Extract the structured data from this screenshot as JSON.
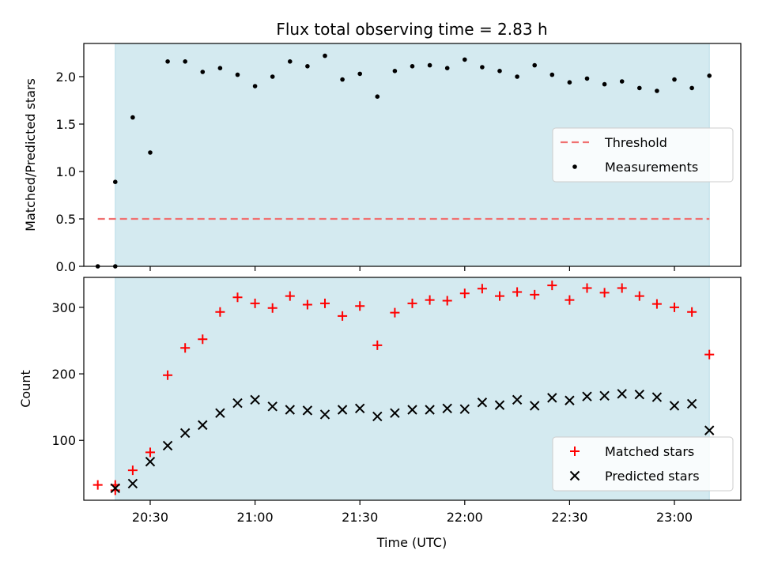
{
  "figure": {
    "title": "Flux total observing time = 2.83 h",
    "xlabel": "Time (UTC)",
    "observing_band_color": "#d4eaf0",
    "observing_band_edge_color": "#b9dde6"
  },
  "chart_data": [
    {
      "type": "scatter",
      "panel": "top",
      "title": "Flux total observing time = 2.83 h",
      "xlabel": "",
      "ylabel": "Matched/Predicted stars",
      "xlim": [
        "20:11",
        "23:19"
      ],
      "ylim": [
        0,
        2.35
      ],
      "x_ticks": [],
      "y_ticks": [
        0.0,
        0.5,
        1.0,
        1.5,
        2.0
      ],
      "y_tick_labels": [
        "0.0",
        "0.5",
        "1.0",
        "1.5",
        "2.0"
      ],
      "observing_window": [
        "20:20",
        "23:10"
      ],
      "legend_position": "center-right",
      "series": [
        {
          "name": "Threshold",
          "kind": "dashed-line",
          "color": "#f07070",
          "x": [
            "20:15",
            "23:10"
          ],
          "y": [
            0.5,
            0.5
          ]
        },
        {
          "name": "Measurements",
          "kind": "dot",
          "color": "#000000",
          "x": [
            "20:15",
            "20:20",
            "20:20",
            "20:25",
            "20:30",
            "20:35",
            "20:40",
            "20:45",
            "20:50",
            "20:55",
            "21:00",
            "21:05",
            "21:10",
            "21:15",
            "21:20",
            "21:25",
            "21:30",
            "21:35",
            "21:40",
            "21:45",
            "21:50",
            "21:55",
            "22:00",
            "22:05",
            "22:10",
            "22:15",
            "22:20",
            "22:25",
            "22:30",
            "22:35",
            "22:40",
            "22:45",
            "22:50",
            "22:55",
            "23:00",
            "23:05",
            "23:10"
          ],
          "y": [
            0.0,
            0.0,
            0.89,
            1.57,
            1.2,
            2.16,
            2.16,
            2.05,
            2.09,
            2.02,
            1.9,
            2.0,
            2.16,
            2.11,
            2.22,
            1.97,
            2.03,
            1.79,
            2.06,
            2.11,
            2.12,
            2.09,
            2.18,
            2.1,
            2.06,
            2.0,
            2.12,
            2.02,
            1.94,
            1.98,
            1.92,
            1.95,
            1.88,
            1.85,
            1.97,
            1.88,
            2.01
          ]
        }
      ]
    },
    {
      "type": "scatter",
      "panel": "bottom",
      "xlabel": "Time (UTC)",
      "ylabel": "Count",
      "xlim": [
        "20:11",
        "23:19"
      ],
      "ylim": [
        10,
        345
      ],
      "x_ticks": [
        "20:30",
        "21:00",
        "21:30",
        "22:00",
        "22:30",
        "23:00"
      ],
      "x_tick_labels": [
        "20:30",
        "21:00",
        "21:30",
        "22:00",
        "22:30",
        "23:00"
      ],
      "y_ticks": [
        100,
        200,
        300
      ],
      "y_tick_labels": [
        "100",
        "200",
        "300"
      ],
      "observing_window": [
        "20:20",
        "23:10"
      ],
      "legend_position": "lower-right",
      "series": [
        {
          "name": "Matched stars",
          "kind": "plus",
          "color": "#ff0000",
          "x": [
            "20:15",
            "20:20",
            "20:20",
            "20:25",
            "20:30",
            "20:35",
            "20:40",
            "20:45",
            "20:50",
            "20:55",
            "21:00",
            "21:05",
            "21:10",
            "21:15",
            "21:20",
            "21:25",
            "21:30",
            "21:35",
            "21:40",
            "21:45",
            "21:50",
            "21:55",
            "22:00",
            "22:05",
            "22:10",
            "22:15",
            "22:20",
            "22:25",
            "22:30",
            "22:35",
            "22:40",
            "22:45",
            "22:50",
            "22:55",
            "23:00",
            "23:05",
            "23:10"
          ],
          "y": [
            33,
            33,
            25,
            55,
            82,
            198,
            239,
            252,
            293,
            315,
            306,
            299,
            317,
            304,
            306,
            287,
            302,
            243,
            292,
            306,
            311,
            310,
            321,
            328,
            317,
            323,
            319,
            333,
            311,
            329,
            322,
            329,
            317,
            305,
            300,
            293,
            229
          ]
        },
        {
          "name": "Predicted stars",
          "kind": "cross",
          "color": "#000000",
          "x": [
            "20:20",
            "20:25",
            "20:30",
            "20:35",
            "20:40",
            "20:45",
            "20:50",
            "20:55",
            "21:00",
            "21:05",
            "21:10",
            "21:15",
            "21:20",
            "21:25",
            "21:30",
            "21:35",
            "21:40",
            "21:45",
            "21:50",
            "21:55",
            "22:00",
            "22:05",
            "22:10",
            "22:15",
            "22:20",
            "22:25",
            "22:30",
            "22:35",
            "22:40",
            "22:45",
            "22:50",
            "22:55",
            "23:00",
            "23:05",
            "23:10"
          ],
          "y": [
            28,
            35,
            68,
            92,
            111,
            123,
            141,
            156,
            161,
            151,
            146,
            145,
            139,
            146,
            148,
            136,
            141,
            146,
            146,
            148,
            147,
            157,
            153,
            161,
            152,
            164,
            160,
            166,
            167,
            170,
            169,
            165,
            152,
            155,
            115
          ]
        }
      ]
    }
  ]
}
